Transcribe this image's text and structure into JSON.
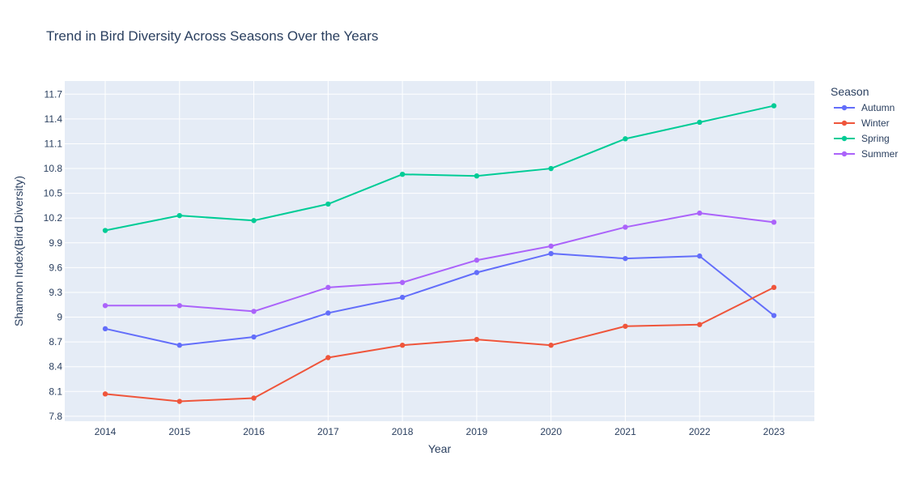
{
  "chart_data": {
    "type": "line",
    "title": "Trend in Bird Diversity Across Seasons Over the Years",
    "xlabel": "Year",
    "ylabel": "Shannon Index(Bird Diversity)",
    "x": [
      2014,
      2015,
      2016,
      2017,
      2018,
      2019,
      2020,
      2021,
      2022,
      2023
    ],
    "x_ticks": [
      "2014",
      "2015",
      "2016",
      "2017",
      "2018",
      "2019",
      "2020",
      "2021",
      "2022",
      "2023"
    ],
    "ylim": [
      7.74,
      11.86
    ],
    "y_ticks": [
      7.8,
      8.1,
      8.4,
      8.7,
      9,
      9.3,
      9.6,
      9.9,
      10.2,
      10.5,
      10.8,
      11.1,
      11.4,
      11.7
    ],
    "y_tick_labels": [
      "7.8",
      "8.1",
      "8.4",
      "8.7",
      "9",
      "9.3",
      "9.6",
      "9.9",
      "10.2",
      "10.5",
      "10.8",
      "11.1",
      "11.4",
      "11.7"
    ],
    "grid": true,
    "legend": {
      "title": "Season",
      "placement": "top-right"
    },
    "series": [
      {
        "name": "Autumn",
        "color": "#636efa",
        "values": [
          8.86,
          8.66,
          8.76,
          9.05,
          9.24,
          9.54,
          9.77,
          9.71,
          9.74,
          9.02
        ]
      },
      {
        "name": "Winter",
        "color": "#ef553b",
        "values": [
          8.07,
          7.98,
          8.02,
          8.51,
          8.66,
          8.73,
          8.66,
          8.89,
          8.91,
          9.36
        ]
      },
      {
        "name": "Spring",
        "color": "#00cc96",
        "values": [
          10.05,
          10.23,
          10.17,
          10.37,
          10.73,
          10.71,
          10.8,
          11.16,
          11.36,
          11.56
        ]
      },
      {
        "name": "Summer",
        "color": "#ab63fa",
        "values": [
          9.14,
          9.14,
          9.07,
          9.36,
          9.42,
          9.69,
          9.86,
          10.09,
          10.26,
          10.15
        ]
      }
    ],
    "colors": {
      "plot_background": "#e5ecf6",
      "grid": "#ffffff",
      "text": "#2a3f5f"
    }
  }
}
